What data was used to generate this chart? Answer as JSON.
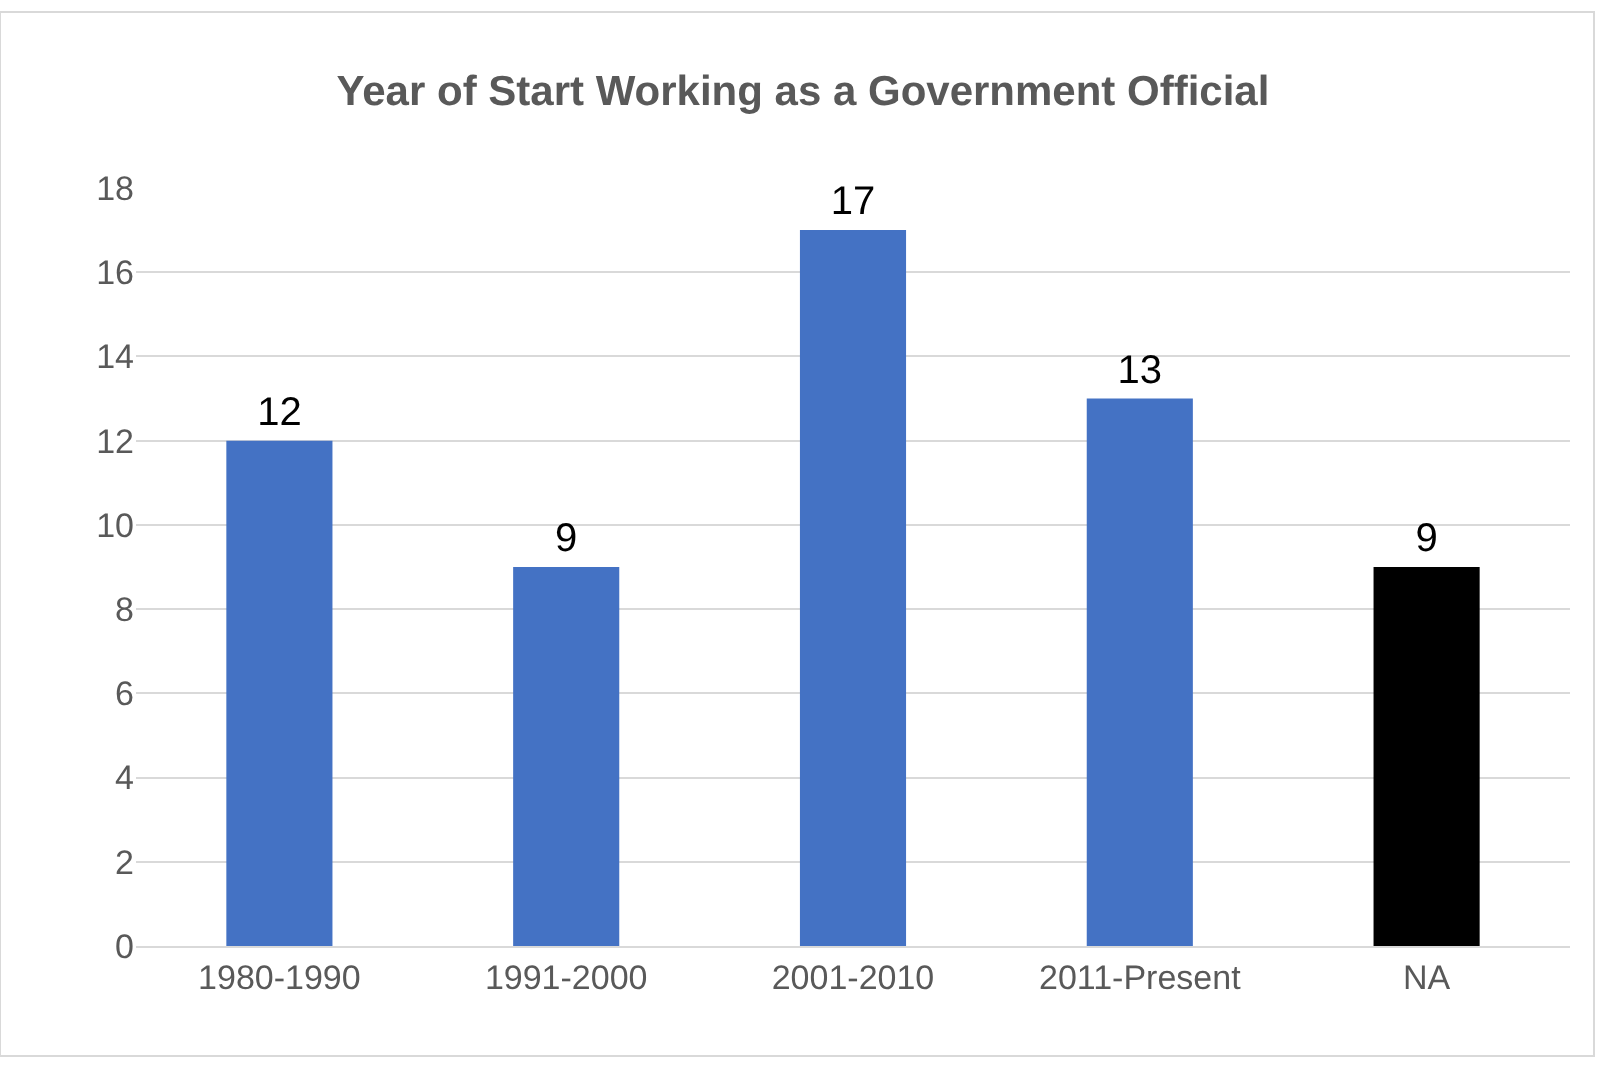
{
  "chart_data": {
    "type": "bar",
    "title": "Year of Start Working as a Government Official",
    "categories": [
      "1980-1990",
      "1991-2000",
      "2001-2010",
      "2011-Present",
      "NA"
    ],
    "values": [
      12,
      9,
      17,
      13,
      9
    ],
    "colors": [
      "#4472c4",
      "#4472c4",
      "#4472c4",
      "#4472c4",
      "#000000"
    ],
    "ylim": [
      0,
      18
    ],
    "yticks": [
      0,
      2,
      4,
      6,
      8,
      10,
      12,
      14,
      16,
      18
    ],
    "grid": "y",
    "data_labels": true,
    "legend": false
  }
}
